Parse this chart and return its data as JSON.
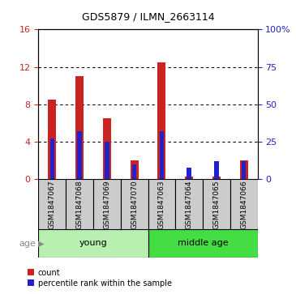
{
  "title": "GDS5879 / ILMN_2663114",
  "samples": [
    "GSM1847067",
    "GSM1847068",
    "GSM1847069",
    "GSM1847070",
    "GSM1847063",
    "GSM1847064",
    "GSM1847065",
    "GSM1847066"
  ],
  "count_values": [
    8.5,
    11.0,
    6.5,
    2.0,
    12.5,
    0.3,
    0.3,
    2.0
  ],
  "percentile_values": [
    27,
    32,
    25,
    10,
    32,
    8,
    12,
    12
  ],
  "groups": [
    {
      "label": "young",
      "start": 0,
      "end": 4,
      "color": "#b8f0b0"
    },
    {
      "label": "middle age",
      "start": 4,
      "end": 8,
      "color": "#44dd44"
    }
  ],
  "ylim_left": [
    0,
    16
  ],
  "ylim_right": [
    0,
    100
  ],
  "yticks_left": [
    0,
    4,
    8,
    12,
    16
  ],
  "yticks_right": [
    0,
    25,
    50,
    75,
    100
  ],
  "bar_width": 0.3,
  "count_color": "#cc2222",
  "percentile_color": "#2222cc",
  "bg_gray": "#cccccc",
  "legend_count": "count",
  "legend_pct": "percentile rank within the sample",
  "age_label": "age"
}
